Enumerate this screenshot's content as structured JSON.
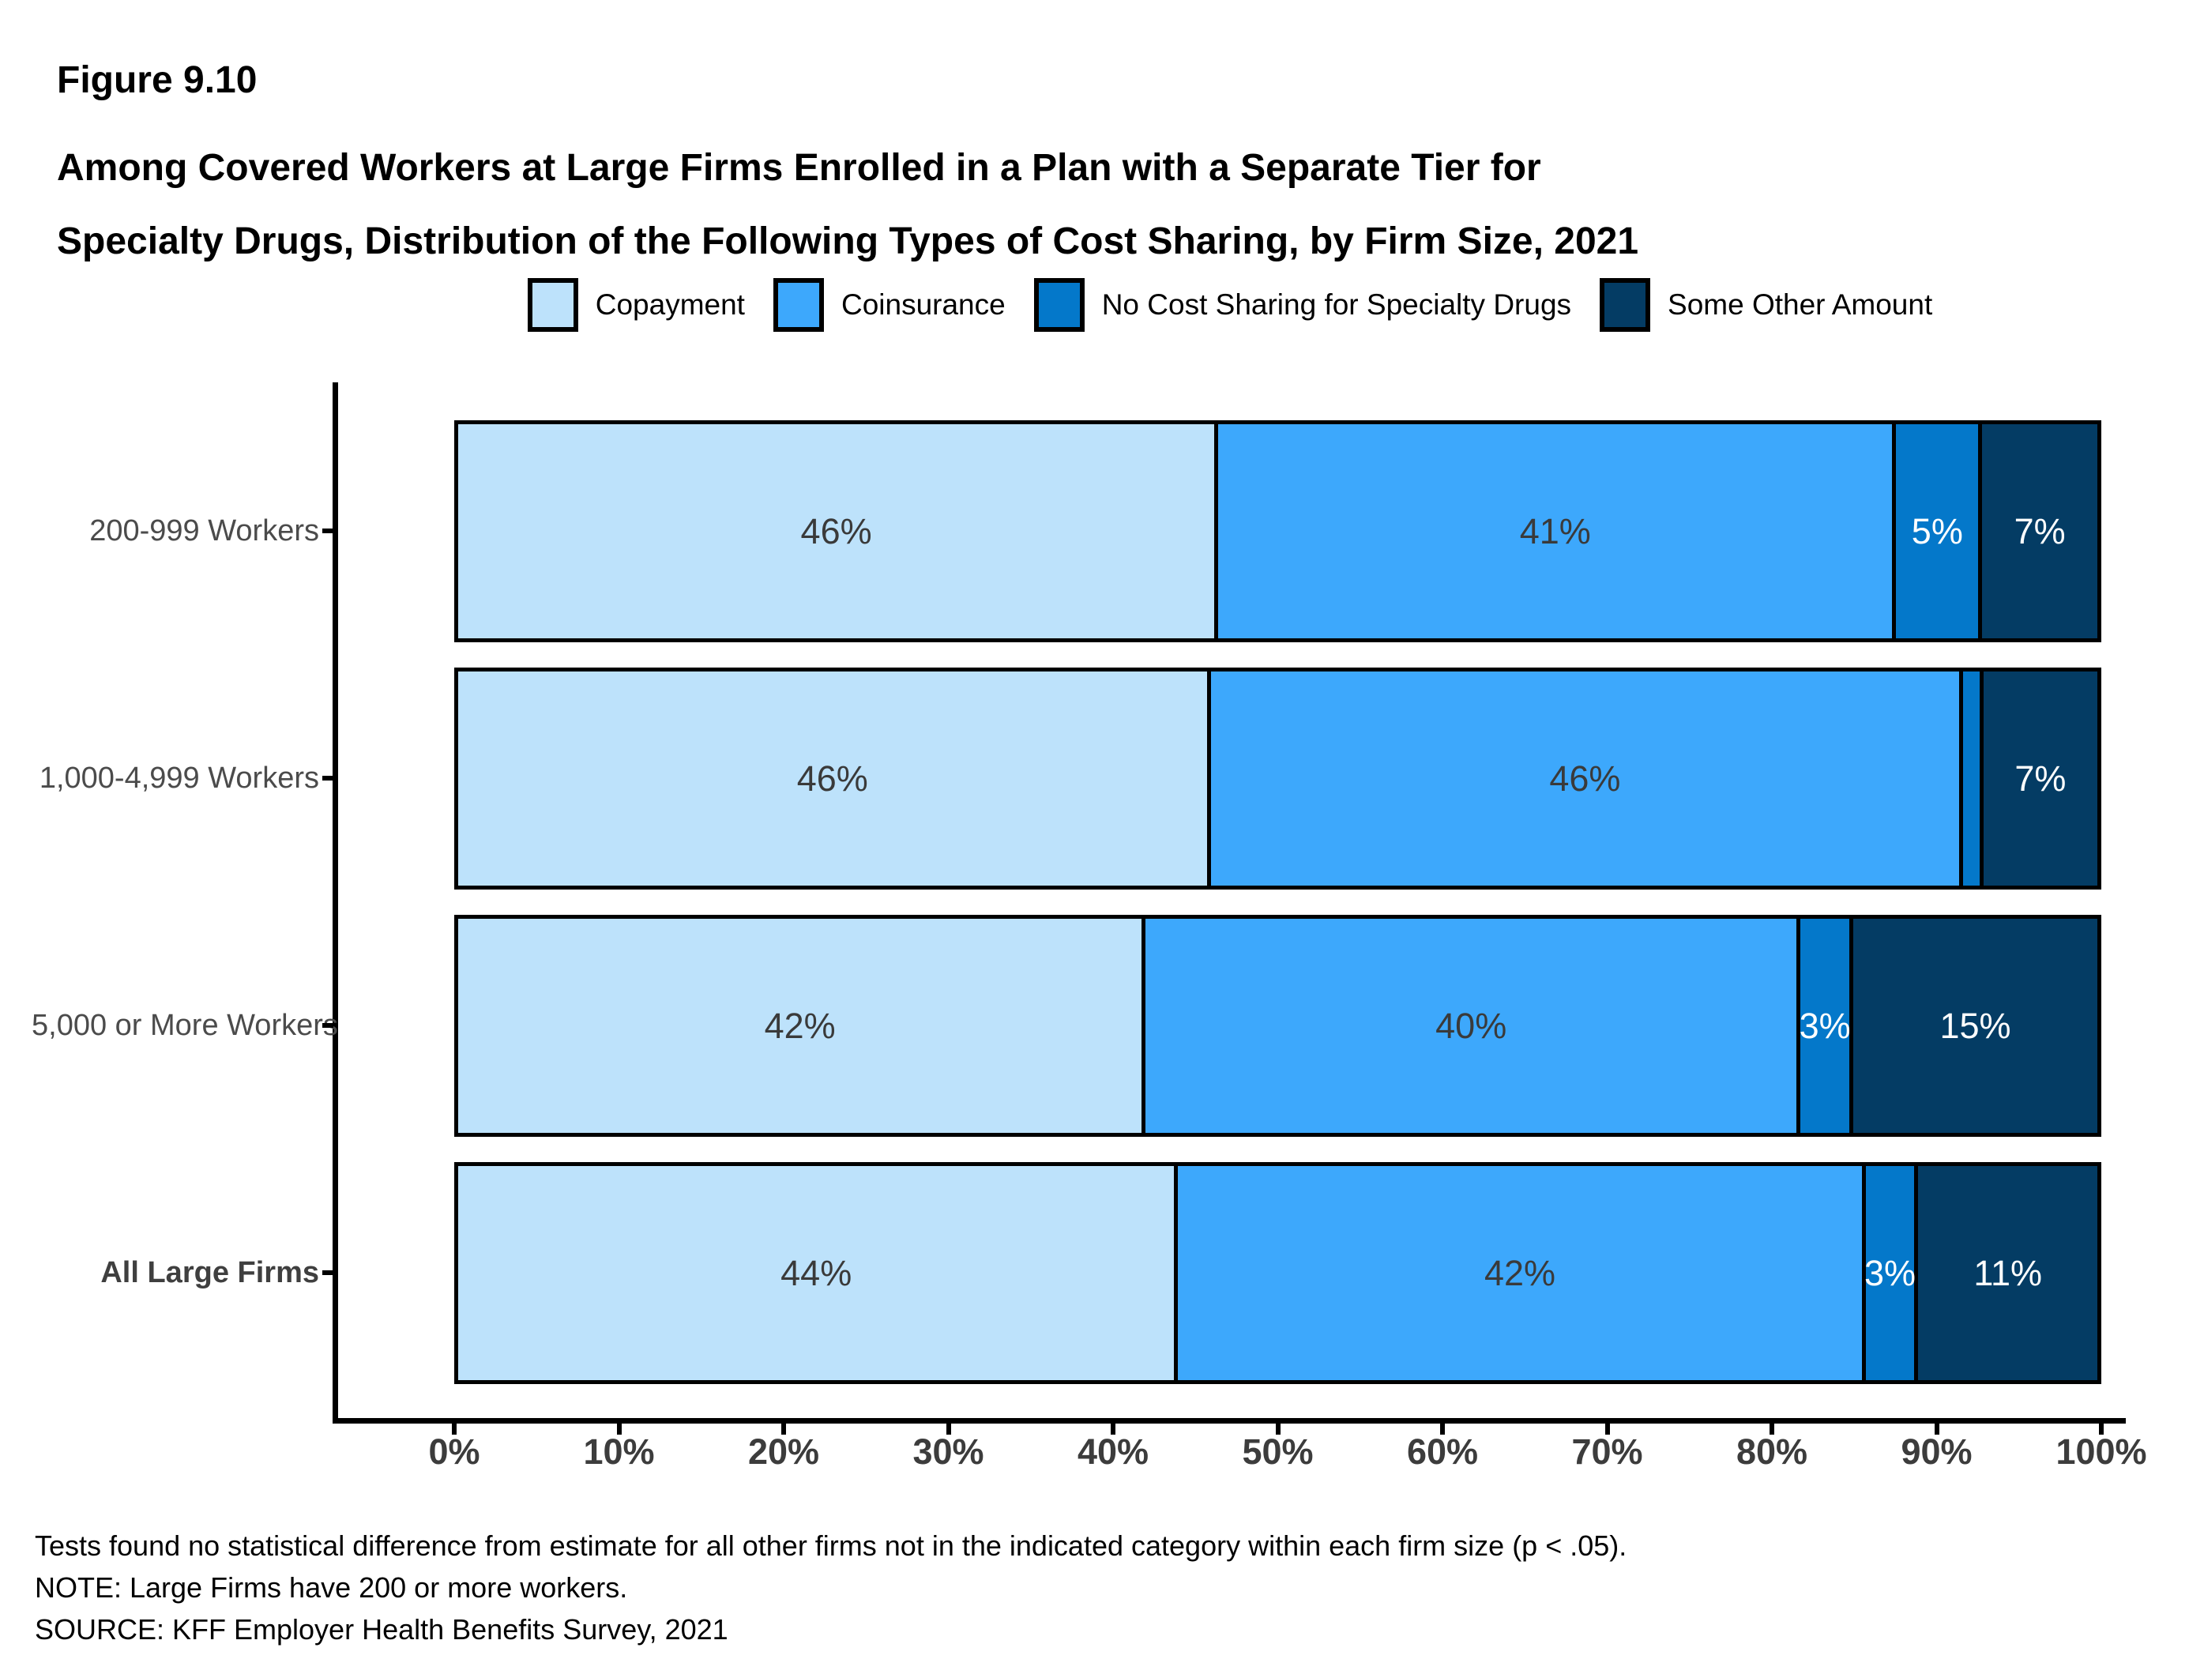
{
  "figure_label": "Figure 9.10",
  "title_lines": [
    "Among Covered Workers at Large Firms Enrolled in a Plan with a Separate Tier for",
    "Specialty Drugs, Distribution of the Following Types of Cost Sharing, by Firm Size, 2021"
  ],
  "legend": {
    "items": [
      {
        "label": "Copayment",
        "color": "#BDE2FB"
      },
      {
        "label": "Coinsurance",
        "color": "#3DA8FC"
      },
      {
        "label": "No Cost Sharing for Specialty Drugs",
        "color": "#0478CA"
      },
      {
        "label": "Some Other Amount",
        "color": "#043C64"
      }
    ]
  },
  "chart_data": {
    "type": "bar",
    "variant": "horizontal-stacked",
    "title": "Among Covered Workers at Large Firms Enrolled in a Plan with a Separate Tier for Specialty Drugs, Distribution of the Following Types of Cost Sharing, by Firm Size, 2021",
    "x_unit": "percent",
    "xlim": [
      0,
      100
    ],
    "x_ticks": [
      "0%",
      "10%",
      "20%",
      "30%",
      "40%",
      "50%",
      "60%",
      "70%",
      "80%",
      "90%",
      "100%"
    ],
    "grid": false,
    "legend_position": "top",
    "categories": [
      "200-999 Workers",
      "1,000-4,999 Workers",
      "5,000 or More Workers",
      "All Large Firms"
    ],
    "bold_category": "All Large Firms",
    "series": [
      {
        "name": "Copayment",
        "color": "#BDE2FB",
        "values": [
          46,
          46,
          42,
          44
        ]
      },
      {
        "name": "Coinsurance",
        "color": "#3DA8FC",
        "values": [
          41,
          46,
          40,
          42
        ]
      },
      {
        "name": "No Cost Sharing for Specialty Drugs",
        "color": "#0478CA",
        "values": [
          5,
          1,
          3,
          3
        ]
      },
      {
        "name": "Some Other Amount",
        "color": "#043C64",
        "values": [
          7,
          7,
          15,
          11
        ]
      }
    ],
    "segment_labels": [
      [
        "46%",
        "41%",
        "5%",
        "7%"
      ],
      [
        "46%",
        "46%",
        "",
        "7%"
      ],
      [
        "42%",
        "40%",
        "3%",
        "15%"
      ],
      [
        "44%",
        "42%",
        "3%",
        "11%"
      ]
    ],
    "segment_text_colors": [
      "#3A3A3A",
      "#3A3A3A",
      "#FFFFFF",
      "#FFFFFF"
    ]
  },
  "footnotes": [
    "Tests found no statistical difference from estimate for all other firms not in the indicated category within each firm size (p < .05).",
    "NOTE: Large Firms have 200 or more workers.",
    "SOURCE: KFF Employer Health Benefits Survey, 2021"
  ]
}
